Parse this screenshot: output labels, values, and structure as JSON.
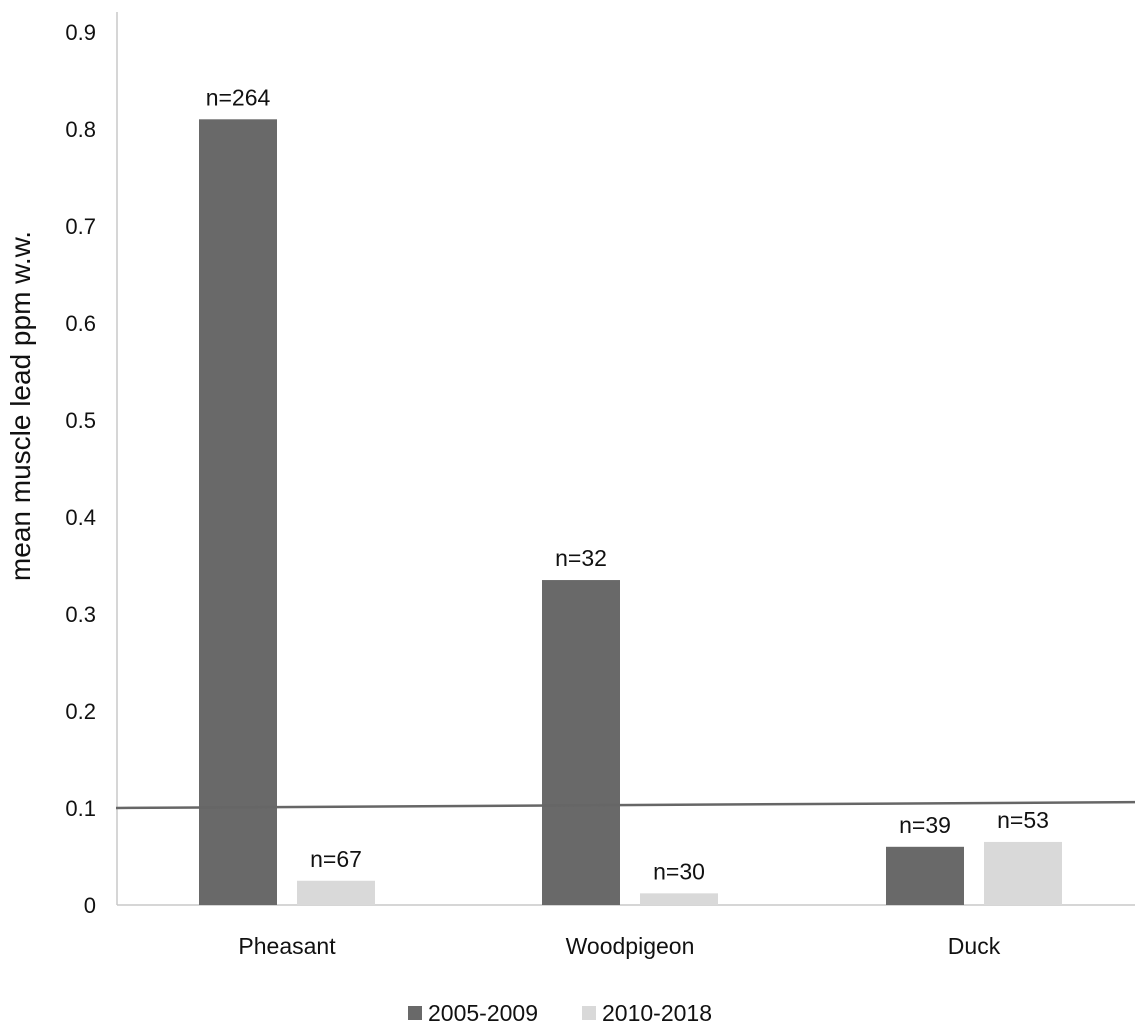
{
  "chart_data": {
    "type": "bar",
    "title": "",
    "xlabel": "",
    "ylabel": "mean muscle lead ppm w.w.",
    "ylim": [
      0,
      0.9
    ],
    "yticks": [
      "0",
      "0.1",
      "0.2",
      "0.3",
      "0.4",
      "0.5",
      "0.6",
      "0.7",
      "0.8",
      "0.9"
    ],
    "categories": [
      "Pheasant",
      "Woodpigeon",
      "Duck"
    ],
    "series": [
      {
        "name": "2005-2009",
        "color": "#696969",
        "values": [
          0.81,
          0.335,
          0.06
        ],
        "labels": [
          "n=264",
          "n=32",
          "n=39"
        ]
      },
      {
        "name": "2010-2018",
        "color": "#d9d9d9",
        "values": [
          0.025,
          0.012,
          0.065
        ],
        "labels": [
          "n=67",
          "n=30",
          "n=53"
        ]
      }
    ],
    "reference_line": {
      "start": 0.1,
      "end": 0.106,
      "color": "#666666"
    },
    "grid": false,
    "legend_position": "bottom",
    "colors": {
      "axis": "#c8c8c8",
      "text": "#111111"
    }
  }
}
